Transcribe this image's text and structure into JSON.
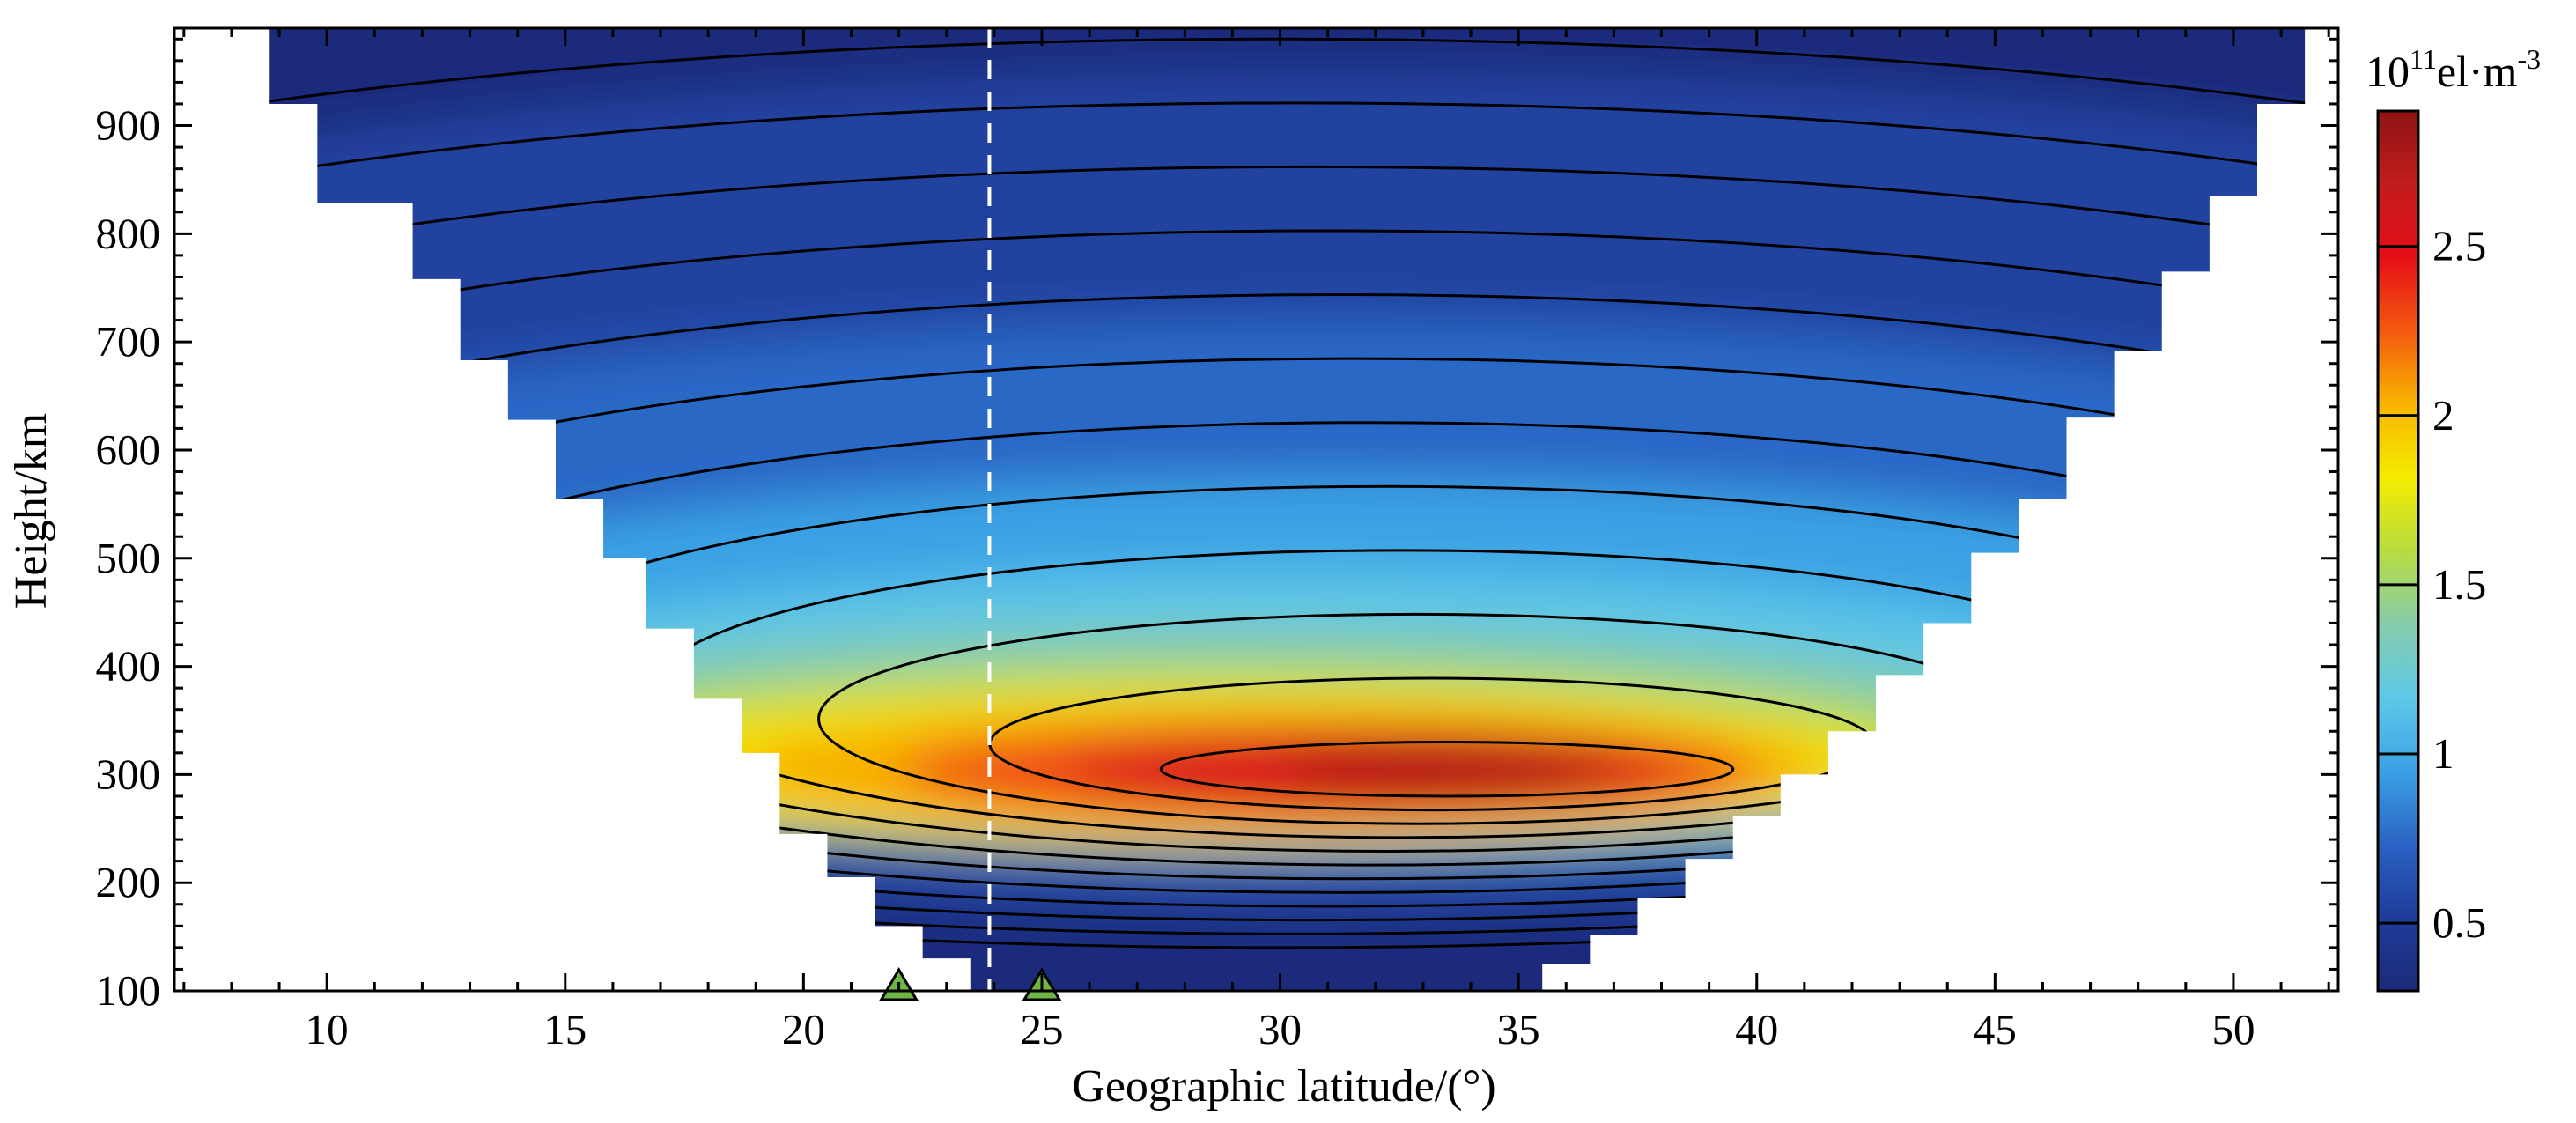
{
  "chart_data": {
    "type": "heatmap",
    "title": "",
    "xlabel": "Geographic latitude/(°)",
    "ylabel": "Height/km",
    "xlim": [
      6.8,
      52.2
    ],
    "ylim": [
      100,
      990
    ],
    "x_ticks": [
      10,
      15,
      20,
      25,
      30,
      35,
      40,
      45,
      50
    ],
    "y_ticks": [
      100,
      200,
      300,
      400,
      500,
      600,
      700,
      800,
      900
    ],
    "x_tick_labels": [
      "10",
      "15",
      "20",
      "25",
      "30",
      "35",
      "40",
      "45",
      "50"
    ],
    "y_tick_labels": [
      "100",
      "200",
      "300",
      "400",
      "500",
      "600",
      "700",
      "800",
      "900"
    ],
    "colorbar": {
      "unit_base": "10",
      "unit_exp": "11",
      "unit_text": "el·m",
      "unit_exp2": "-3",
      "range": [
        0.3,
        2.9
      ],
      "ticks": [
        0.5,
        1,
        1.5,
        2,
        2.5
      ],
      "tick_labels": [
        "0.5",
        "1",
        "1.5",
        "2",
        "2.5"
      ],
      "colors": [
        "#1b2a78",
        "#1f3c9a",
        "#2a63c4",
        "#3aa2e4",
        "#5ec8e8",
        "#86ccab",
        "#b8dc40",
        "#f5ec00",
        "#f8b400",
        "#f35a10",
        "#e60f18",
        "#c21c1c",
        "#8e1414"
      ]
    },
    "ground_stations": [
      {
        "lat": 22.0,
        "marker": "triangle",
        "color": "#6fb544"
      },
      {
        "lat": 25.0,
        "marker": "triangle",
        "color": "#6fb544"
      }
    ],
    "reference_line": {
      "lat": 23.9,
      "style": "dashed",
      "color": "#ffffff"
    },
    "data_coverage": {
      "left_boundary": [
        [
          8.8,
          990
        ],
        [
          8.8,
          920
        ],
        [
          9.8,
          920
        ],
        [
          9.8,
          828
        ],
        [
          11.8,
          828
        ],
        [
          11.8,
          758
        ],
        [
          12.8,
          758
        ],
        [
          12.8,
          683
        ],
        [
          13.8,
          683
        ],
        [
          13.8,
          628
        ],
        [
          14.8,
          628
        ],
        [
          14.8,
          555
        ],
        [
          15.8,
          555
        ],
        [
          15.8,
          500
        ],
        [
          16.7,
          500
        ],
        [
          16.7,
          435
        ],
        [
          17.7,
          435
        ],
        [
          17.7,
          370
        ],
        [
          18.7,
          370
        ],
        [
          18.7,
          320
        ],
        [
          19.5,
          320
        ],
        [
          19.5,
          245
        ],
        [
          20.5,
          245
        ],
        [
          20.5,
          205
        ],
        [
          21.5,
          205
        ],
        [
          21.5,
          160
        ],
        [
          22.5,
          160
        ],
        [
          22.5,
          130
        ],
        [
          23.5,
          130
        ],
        [
          23.5,
          100
        ]
      ],
      "right_boundary": [
        [
          52.2,
          990
        ],
        [
          51.5,
          990
        ],
        [
          51.5,
          920
        ],
        [
          50.5,
          920
        ],
        [
          50.5,
          835
        ],
        [
          49.5,
          835
        ],
        [
          49.5,
          765
        ],
        [
          48.5,
          765
        ],
        [
          48.5,
          692
        ],
        [
          47.5,
          692
        ],
        [
          47.5,
          630
        ],
        [
          46.5,
          630
        ],
        [
          46.5,
          555
        ],
        [
          45.5,
          555
        ],
        [
          45.5,
          505
        ],
        [
          44.5,
          505
        ],
        [
          44.5,
          440
        ],
        [
          43.5,
          440
        ],
        [
          43.5,
          392
        ],
        [
          42.5,
          392
        ],
        [
          42.5,
          340
        ],
        [
          41.5,
          340
        ],
        [
          41.5,
          300
        ],
        [
          40.5,
          300
        ],
        [
          40.5,
          262
        ],
        [
          39.5,
          262
        ],
        [
          39.5,
          222
        ],
        [
          38.5,
          222
        ],
        [
          38.5,
          186
        ],
        [
          37.5,
          186
        ],
        [
          37.5,
          152
        ],
        [
          36.5,
          152
        ],
        [
          36.5,
          125
        ],
        [
          35.5,
          125
        ],
        [
          35.5,
          100
        ]
      ]
    },
    "density_peak": {
      "lat": 33.5,
      "height_km": 305,
      "value": 2.9
    },
    "contour_levels": [
      0.6,
      0.8,
      1.0,
      1.2,
      1.4,
      1.6,
      1.8,
      2.0,
      2.2,
      2.4,
      2.6,
      2.8
    ]
  }
}
